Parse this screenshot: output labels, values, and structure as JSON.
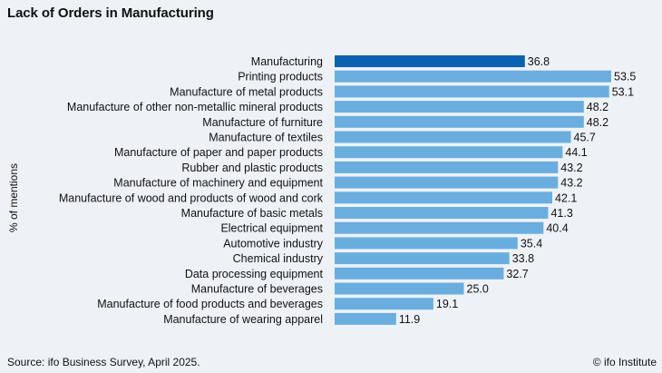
{
  "title": "Lack of Orders in Manufacturing",
  "footer": {
    "source": "Source: ifo Business Survey, April 2025.",
    "credit": "© ifo Institute"
  },
  "colors": {
    "highlight": "#0b62b0",
    "bar": "#6aaee0",
    "background": "#eef2f7"
  },
  "chart_data": {
    "type": "bar",
    "orientation": "horizontal",
    "ylabel": "% of mentions",
    "categories": [
      "Manufacturing",
      "Printing products",
      "Manufacture of metal products",
      "Manufacture of other non-metallic mineral products",
      "Manufacture of furniture",
      "Manufacture of textiles",
      "Manufacture of paper and paper products",
      "Rubber and plastic products",
      "Manufacture of machinery and equipment",
      "Manufacture of wood and products of wood and cork",
      "Manufacture of basic metals",
      "Electrical equipment",
      "Automotive industry",
      "Chemical industry",
      "Data processing equipment",
      "Manufacture of beverages",
      "Manufacture of food products and beverages",
      "Manufacture of wearing apparel"
    ],
    "values": [
      36.8,
      53.5,
      53.1,
      48.2,
      48.2,
      45.7,
      44.1,
      43.2,
      43.2,
      42.1,
      41.3,
      40.4,
      35.4,
      33.8,
      32.7,
      25.0,
      19.1,
      11.9
    ],
    "value_labels": [
      "36.8",
      "53.5",
      "53.1",
      "48.2",
      "48.2",
      "45.7",
      "44.1",
      "43.2",
      "43.2",
      "42.1",
      "41.3",
      "40.4",
      "35.4",
      "33.8",
      "32.7",
      "25.0",
      "19.1",
      "11.9"
    ],
    "highlight_category": "Manufacturing",
    "grid": false,
    "legend": "none",
    "xlim": [
      0,
      53.5
    ]
  }
}
